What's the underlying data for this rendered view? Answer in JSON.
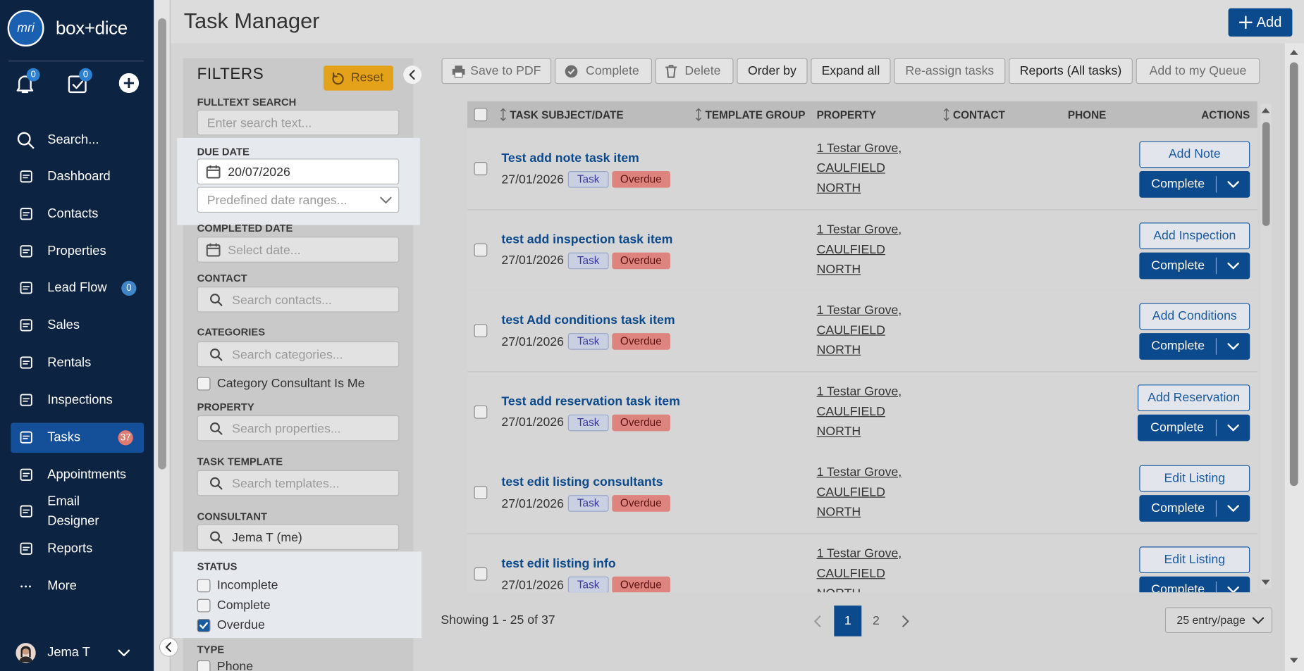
{
  "sidebar": {
    "logo": "mri",
    "brand": "box+dice",
    "notifications": 0,
    "tasks_badge": 0,
    "nav": [
      {
        "label": "Search..."
      },
      {
        "label": "Dashboard"
      },
      {
        "label": "Contacts"
      },
      {
        "label": "Properties"
      },
      {
        "label": "Lead Flow",
        "badge": 0
      },
      {
        "label": "Sales"
      },
      {
        "label": "Rentals"
      },
      {
        "label": "Inspections"
      },
      {
        "label": "Tasks",
        "badge": 37,
        "active": true
      },
      {
        "label": "Appointments"
      },
      {
        "label": "Email Designer"
      },
      {
        "label": "Reports"
      },
      {
        "label": "More"
      }
    ],
    "user": "Jema T"
  },
  "header": {
    "title": "Task Manager",
    "add_button": "Add"
  },
  "filters": {
    "title": "FILTERS",
    "reset": "Reset",
    "fulltext_search": {
      "label": "FULLTEXT SEARCH",
      "placeholder": "Enter search text..."
    },
    "due_date": {
      "label": "DUE DATE",
      "value": "20/07/2026",
      "range_placeholder": "Predefined date ranges..."
    },
    "completed_date": {
      "label": "COMPLETED DATE",
      "placeholder": "Select date..."
    },
    "contact": {
      "label": "CONTACT",
      "placeholder": "Search contacts..."
    },
    "categories": {
      "label": "CATEGORIES",
      "placeholder": "Search categories...",
      "checkbox": {
        "label": "Category Consultant Is Me",
        "checked": false
      }
    },
    "property": {
      "label": "PROPERTY",
      "placeholder": "Search properties..."
    },
    "task_template": {
      "label": "TASK TEMPLATE",
      "placeholder": "Search templates..."
    },
    "consultant": {
      "label": "CONSULTANT",
      "value": "Jema T (me)"
    },
    "status": {
      "label": "STATUS",
      "options": [
        {
          "label": "Incomplete",
          "checked": false
        },
        {
          "label": "Complete",
          "checked": false
        },
        {
          "label": "Overdue",
          "checked": true
        }
      ]
    },
    "type": {
      "label": "TYPE",
      "options": [
        {
          "label": "Phone",
          "checked": false
        }
      ]
    }
  },
  "toolbar": [
    {
      "label": "Save to PDF",
      "enabled": false
    },
    {
      "label": "Complete",
      "enabled": false
    },
    {
      "label": "Delete",
      "enabled": false
    },
    {
      "label": "Order by",
      "enabled": true
    },
    {
      "label": "Expand all",
      "enabled": true
    },
    {
      "label": "Re-assign tasks",
      "enabled": false
    },
    {
      "label": "Reports (All tasks)",
      "enabled": true
    },
    {
      "label": "Add to my Queue",
      "enabled": false
    }
  ],
  "table": {
    "columns": [
      {
        "label": "TASK SUBJECT/DATE",
        "sortable": true
      },
      {
        "label": "TEMPLATE GROUP",
        "sortable": true
      },
      {
        "label": "PROPERTY",
        "sortable": false
      },
      {
        "label": "CONTACT",
        "sortable": true
      },
      {
        "label": "PHONE",
        "sortable": false
      },
      {
        "label": "ACTIONS",
        "sortable": false
      }
    ],
    "rows": [
      {
        "subject": "Test add note task item",
        "date": "27/01/2026",
        "tags": [
          "Task",
          "Overdue"
        ],
        "property": [
          "1 Testar Grove,",
          "CAULFIELD",
          "NORTH"
        ],
        "action": "Add Note",
        "complete": "Complete"
      },
      {
        "subject": "test add inspection task item",
        "date": "27/01/2026",
        "tags": [
          "Task",
          "Overdue"
        ],
        "property": [
          "1 Testar Grove,",
          "CAULFIELD",
          "NORTH"
        ],
        "action": "Add Inspection",
        "complete": "Complete"
      },
      {
        "subject": "test Add conditions task item",
        "date": "27/01/2026",
        "tags": [
          "Task",
          "Overdue"
        ],
        "property": [
          "1 Testar Grove,",
          "CAULFIELD",
          "NORTH"
        ],
        "action": "Add Conditions",
        "complete": "Complete"
      },
      {
        "subject": "Test add reservation task item",
        "date": "27/01/2026",
        "tags": [
          "Task",
          "Overdue"
        ],
        "property": [
          "1 Testar Grove,",
          "CAULFIELD",
          "NORTH"
        ],
        "action": "Add Reservation",
        "complete": "Complete"
      },
      {
        "subject": "test edit listing consultants",
        "date": "27/01/2026",
        "tags": [
          "Task",
          "Overdue"
        ],
        "property": [
          "1 Testar Grove,",
          "CAULFIELD",
          "NORTH"
        ],
        "action": "Edit Listing",
        "complete": "Complete"
      },
      {
        "subject": "test edit listing info",
        "date": "27/01/2026",
        "tags": [
          "Task",
          "Overdue"
        ],
        "property": [
          "1 Testar Grove,",
          "CAULFIELD",
          "NORTH"
        ],
        "action": "Edit Listing",
        "complete": "Complete"
      }
    ]
  },
  "pagination": {
    "summary": "Showing 1 - 25 of 37",
    "pages": [
      1,
      2
    ],
    "current": 1,
    "page_size": "25 entry/page"
  }
}
